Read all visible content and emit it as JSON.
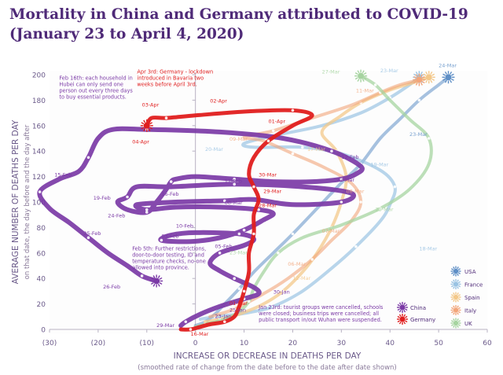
{
  "title_line1": "Mortality in China and Germany attributed to COVID-19",
  "title_line2": "(January 23 to April 4, 2020)",
  "chart_data": {
    "type": "line",
    "xlabel": "INCREASE OR DECREASE IN DEATHS PER DAY",
    "xlabel_sub": "(smoothed rate of change from the date before to the date after date shown)",
    "ylabel": "AVERAGE NUMBER OF DEATHS PER DAY",
    "ylabel_sub": "on that date, the day before and the day after",
    "xlim": [
      -30,
      60
    ],
    "ylim": [
      0,
      200
    ],
    "xticks": [
      {
        "v": -30,
        "label": "(30)"
      },
      {
        "v": -20,
        "label": "(20)"
      },
      {
        "v": -10,
        "label": "(10)"
      },
      {
        "v": 0,
        "label": "0"
      },
      {
        "v": 10,
        "label": "10"
      },
      {
        "v": 20,
        "label": "20"
      },
      {
        "v": 30,
        "label": "30"
      },
      {
        "v": 40,
        "label": "40"
      },
      {
        "v": 50,
        "label": "50"
      },
      {
        "v": 60,
        "label": "60"
      }
    ],
    "yticks": [
      0,
      20,
      40,
      60,
      80,
      100,
      120,
      140,
      160,
      180,
      200
    ],
    "grid": false,
    "legend_position": "bottom-right",
    "series": [
      {
        "name": "USA",
        "color": "#5f8fc6",
        "width": 4,
        "opacity": 0.55,
        "points": [
          [
            0,
            3
          ],
          [
            2,
            6
          ],
          [
            4,
            12
          ],
          [
            6,
            20
          ],
          [
            9,
            32
          ],
          [
            12,
            45
          ],
          [
            16,
            60
          ],
          [
            20,
            75
          ],
          [
            25,
            95
          ],
          [
            30,
            115
          ],
          [
            34,
            130
          ],
          [
            38,
            150
          ],
          [
            42,
            165
          ],
          [
            46,
            180
          ],
          [
            50,
            192
          ],
          [
            52,
            198
          ]
        ],
        "labels": [
          {
            "text": "23-Mar",
            "x": 44,
            "y": 152
          },
          {
            "text": "24-Mar",
            "x": 50,
            "y": 206
          }
        ]
      },
      {
        "name": "France",
        "color": "#9ac3e3",
        "width": 4,
        "opacity": 0.7,
        "points": [
          [
            1,
            8
          ],
          [
            4,
            10
          ],
          [
            9,
            12
          ],
          [
            12,
            14
          ],
          [
            16,
            18
          ],
          [
            22,
            30
          ],
          [
            28,
            48
          ],
          [
            33,
            65
          ],
          [
            38,
            85
          ],
          [
            40,
            98
          ],
          [
            41,
            112
          ],
          [
            38,
            125
          ],
          [
            30,
            138
          ],
          [
            22,
            143
          ],
          [
            12,
            143
          ],
          [
            10,
            146
          ],
          [
            16,
            152
          ],
          [
            26,
            160
          ],
          [
            34,
            170
          ],
          [
            40,
            182
          ],
          [
            44,
            192
          ],
          [
            46,
            198
          ]
        ],
        "labels": [
          {
            "text": "20-Mar",
            "x": 2,
            "y": 140
          },
          {
            "text": "19-Mar",
            "x": 36,
            "y": 128
          },
          {
            "text": "18-Mar",
            "x": 46,
            "y": 62
          },
          {
            "text": "23-Mar",
            "x": 38,
            "y": 202
          }
        ]
      },
      {
        "name": "Spain",
        "color": "#f3c88a",
        "width": 4,
        "opacity": 0.75,
        "points": [
          [
            2,
            6
          ],
          [
            5,
            8
          ],
          [
            9,
            12
          ],
          [
            14,
            20
          ],
          [
            18,
            30
          ],
          [
            22,
            45
          ],
          [
            25,
            60
          ],
          [
            28,
            80
          ],
          [
            30,
            100
          ],
          [
            31,
            120
          ],
          [
            29,
            140
          ],
          [
            26,
            155
          ],
          [
            30,
            168
          ],
          [
            34,
            178
          ],
          [
            40,
            188
          ],
          [
            45,
            194
          ],
          [
            48,
            198
          ]
        ],
        "labels": [
          {
            "text": "17-Mar",
            "x": 23,
            "y": 140
          },
          {
            "text": "12-Mar",
            "x": 20,
            "y": 39
          }
        ]
      },
      {
        "name": "Italy",
        "color": "#f2a57a",
        "width": 4,
        "opacity": 0.6,
        "points": [
          [
            3,
            10
          ],
          [
            8,
            16
          ],
          [
            14,
            28
          ],
          [
            19,
            40
          ],
          [
            24,
            55
          ],
          [
            28,
            70
          ],
          [
            32,
            85
          ],
          [
            34,
            100
          ],
          [
            32,
            115
          ],
          [
            26,
            128
          ],
          [
            20,
            138
          ],
          [
            14,
            148
          ],
          [
            10,
            151
          ],
          [
            16,
            156
          ],
          [
            24,
            166
          ],
          [
            32,
            176
          ],
          [
            38,
            186
          ],
          [
            42,
            192
          ],
          [
            46,
            196
          ]
        ],
        "labels": [
          {
            "text": "09-Mar",
            "x": 7,
            "y": 148
          },
          {
            "text": "08-Mar",
            "x": 31,
            "y": 107
          },
          {
            "text": "07-Mar",
            "x": 26,
            "y": 76
          },
          {
            "text": "06-Mar",
            "x": 19,
            "y": 50
          },
          {
            "text": "11-Mar",
            "x": 33,
            "y": 186
          }
        ]
      },
      {
        "name": "UK",
        "color": "#a6d4a0",
        "width": 4,
        "opacity": 0.75,
        "points": [
          [
            0,
            2
          ],
          [
            2,
            4
          ],
          [
            6,
            8
          ],
          [
            9,
            14
          ],
          [
            11,
            22
          ],
          [
            12,
            32
          ],
          [
            14,
            45
          ],
          [
            17,
            60
          ],
          [
            22,
            72
          ],
          [
            30,
            82
          ],
          [
            38,
            95
          ],
          [
            44,
            110
          ],
          [
            48,
            130
          ],
          [
            48,
            150
          ],
          [
            44,
            165
          ],
          [
            40,
            180
          ],
          [
            37,
            192
          ],
          [
            34,
            199
          ]
        ],
        "labels": [
          {
            "text": "27-Mar",
            "x": 26,
            "y": 201
          },
          {
            "text": "25-Mar",
            "x": 37,
            "y": 93
          },
          {
            "text": "23-Mar",
            "x": 7,
            "y": 59
          }
        ]
      },
      {
        "name": "China",
        "color": "#7b3aa6",
        "width": 6,
        "opacity": 0.92,
        "points": [
          [
            -3,
            3
          ],
          [
            -2,
            6
          ],
          [
            1,
            12
          ],
          [
            5,
            18
          ],
          [
            10,
            24
          ],
          [
            13,
            28
          ],
          [
            12,
            33
          ],
          [
            8,
            40
          ],
          [
            5,
            46
          ],
          [
            3,
            52
          ],
          [
            5,
            60
          ],
          [
            10,
            66
          ],
          [
            12,
            71
          ],
          [
            9,
            75
          ],
          [
            0,
            76
          ],
          [
            -5,
            74
          ],
          [
            -7,
            70
          ],
          [
            -1,
            69
          ],
          [
            5,
            72
          ],
          [
            10,
            78
          ],
          [
            14,
            86
          ],
          [
            16,
            91
          ],
          [
            13,
            94
          ],
          [
            5,
            96
          ],
          [
            -4,
            96
          ],
          [
            -10,
            94
          ],
          [
            -12,
            98
          ],
          [
            -4,
            100
          ],
          [
            6,
            101
          ],
          [
            12,
            102
          ],
          [
            20,
            98
          ],
          [
            30,
            100
          ],
          [
            32,
            107
          ],
          [
            22,
            112
          ],
          [
            8,
            114
          ],
          [
            -5,
            112
          ],
          [
            -12,
            112
          ],
          [
            -14,
            104
          ],
          [
            -16,
            100
          ],
          [
            -14,
            94
          ],
          [
            -10,
            92
          ],
          [
            -8,
            100
          ],
          [
            -6,
            110
          ],
          [
            -5,
            116
          ],
          [
            -4,
            118
          ],
          [
            0,
            120
          ],
          [
            8,
            118
          ],
          [
            16,
            116
          ],
          [
            24,
            116
          ],
          [
            30,
            118
          ],
          [
            33,
            122
          ],
          [
            34,
            128
          ],
          [
            28,
            140
          ],
          [
            18,
            150
          ],
          [
            5,
            155
          ],
          [
            -10,
            157
          ],
          [
            -17,
            157
          ],
          [
            -20,
            150
          ],
          [
            -22,
            135
          ],
          [
            -24,
            124
          ],
          [
            -28,
            118
          ],
          [
            -32,
            108
          ],
          [
            -30,
            95
          ],
          [
            -26,
            84
          ],
          [
            -22,
            72
          ],
          [
            -18,
            60
          ],
          [
            -14,
            50
          ],
          [
            -11,
            42
          ],
          [
            -8,
            38
          ]
        ],
        "labels": [
          {
            "text": "15-Feb",
            "x": -29,
            "y": 120
          },
          {
            "text": "19-Feb",
            "x": -21,
            "y": 102
          },
          {
            "text": "24-Feb",
            "x": -18,
            "y": 88
          },
          {
            "text": "25-Feb",
            "x": -23,
            "y": 74
          },
          {
            "text": "26-Feb",
            "x": -19,
            "y": 32
          },
          {
            "text": "16-Feb",
            "x": -7,
            "y": 105
          },
          {
            "text": "17-Feb",
            "x": 6,
            "y": 115
          },
          {
            "text": "08-Mar",
            "x": 6,
            "y": 98
          },
          {
            "text": "10-Feb",
            "x": -4,
            "y": 80
          },
          {
            "text": "03-Feb",
            "x": -7,
            "y": 72
          },
          {
            "text": "05-Feb",
            "x": 4,
            "y": 64
          },
          {
            "text": "12-Feb",
            "x": 30,
            "y": 134
          },
          {
            "text": "22-Mar",
            "x": 29,
            "y": 116
          },
          {
            "text": "30-Jan",
            "x": 16,
            "y": 28
          },
          {
            "text": "25-Jan",
            "x": 7,
            "y": 14
          },
          {
            "text": "23-Jan",
            "x": 4,
            "y": 9
          },
          {
            "text": "29-Mar",
            "x": -8,
            "y": 2
          }
        ]
      },
      {
        "name": "Germany",
        "color": "#e01e1e",
        "width": 5,
        "opacity": 0.95,
        "points": [
          [
            -3,
            0
          ],
          [
            -1,
            0
          ],
          [
            1,
            2
          ],
          [
            3,
            4
          ],
          [
            6,
            6
          ],
          [
            8,
            10
          ],
          [
            9,
            18
          ],
          [
            10,
            30
          ],
          [
            11,
            45
          ],
          [
            11,
            60
          ],
          [
            12,
            75
          ],
          [
            12,
            90
          ],
          [
            13,
            102
          ],
          [
            12,
            112
          ],
          [
            11,
            122
          ],
          [
            12,
            135
          ],
          [
            15,
            148
          ],
          [
            20,
            160
          ],
          [
            24,
            168
          ],
          [
            20,
            172
          ],
          [
            10,
            171
          ],
          [
            0,
            168
          ],
          [
            -6,
            166
          ],
          [
            -9,
            166
          ],
          [
            -10,
            160
          ]
        ],
        "labels": [
          {
            "text": "16-Mar",
            "x": -1,
            "y": -5
          },
          {
            "text": "01-Mar",
            "x": 7,
            "y": 19
          },
          {
            "text": "30-Mar",
            "x": 13,
            "y": 120
          },
          {
            "text": "29-Mar",
            "x": 14,
            "y": 107
          },
          {
            "text": "28-Mar",
            "x": 13,
            "y": 96
          },
          {
            "text": "01-Apr",
            "x": 15,
            "y": 162
          },
          {
            "text": "02-Apr",
            "x": 3,
            "y": 178
          },
          {
            "text": "03-Apr",
            "x": -11,
            "y": 175
          },
          {
            "text": "04-Apr",
            "x": -13,
            "y": 146
          }
        ]
      }
    ],
    "annotations": [
      {
        "text": "Apr 3rd: Germany - lockdown\nintroduced in Bavaria two\nweeks before April 3rd.",
        "x": -12,
        "y": 201,
        "color": "#e01e1e"
      },
      {
        "text": "Feb 16th: each household in\nHubei can only send one\nperson out every three days\nto buy essential products.",
        "x": -28,
        "y": 196,
        "color": "#7b3aa6"
      },
      {
        "text": "Feb 5th: Further restrictions,\ndoor-to-door testing, ID and\ntemperature checks, no-one\nallowed into province.",
        "x": -13,
        "y": 62,
        "color": "#7b3aa6"
      },
      {
        "text": "Jan 23rd: tourist groups were cancelled, schools\nwere closed; business trips were cancelled; all\npublic transport in/out Wuhan were suspended.",
        "x": 13,
        "y": 16,
        "color": "#7b3aa6"
      }
    ]
  }
}
